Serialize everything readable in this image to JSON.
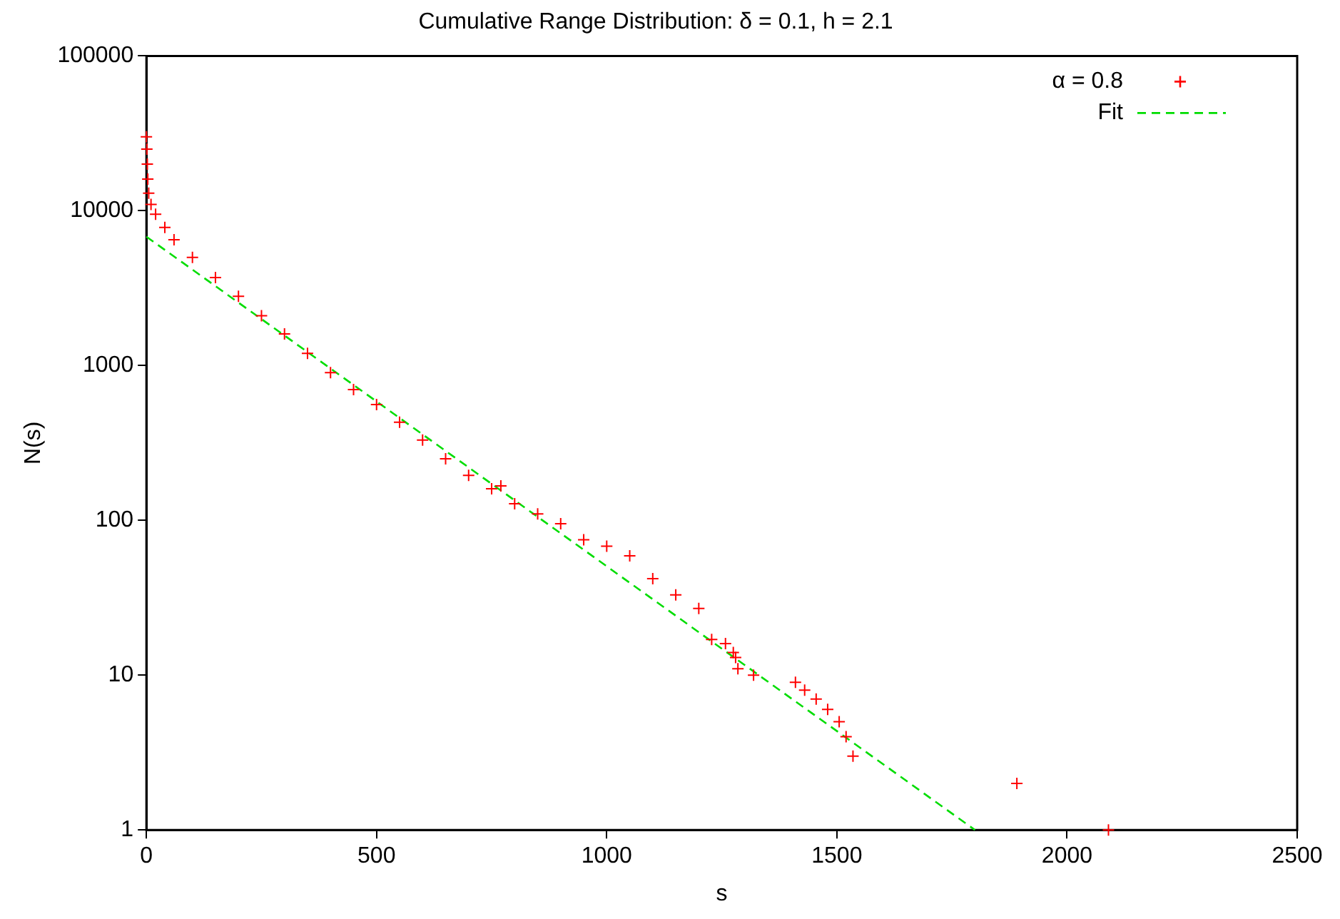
{
  "chart_data": {
    "type": "scatter",
    "title": "Cumulative Range Distribution: δ = 0.1, h = 2.1",
    "xlabel": "s",
    "ylabel": "N(s)",
    "log": "y",
    "xlim": [
      0,
      2500
    ],
    "xticks": [
      0,
      500,
      1000,
      1500,
      2000,
      2500
    ],
    "ylim": [
      1,
      100000
    ],
    "yticks": [
      1,
      10,
      100,
      1000,
      10000,
      100000
    ],
    "legend": "top right",
    "grid": false,
    "series": [
      {
        "name": "α = 0.8",
        "marker": "cross",
        "color": "#ff0000",
        "x": [
          0,
          1,
          2,
          3,
          5,
          10,
          20,
          40,
          60,
          100,
          150,
          200,
          250,
          300,
          350,
          400,
          450,
          500,
          550,
          600,
          650,
          700,
          750,
          770,
          800,
          850,
          900,
          950,
          1000,
          1050,
          1100,
          1150,
          1200,
          1228,
          1258,
          1275,
          1280,
          1285,
          1319,
          1410,
          1430,
          1455,
          1480,
          1505,
          1520,
          1535,
          1891,
          2090
        ],
        "values": [
          30000,
          25000,
          20000,
          16000,
          13000,
          11000,
          9500,
          7800,
          6500,
          5000,
          3700,
          2800,
          2100,
          1600,
          1200,
          900,
          700,
          560,
          430,
          330,
          250,
          195,
          160,
          167,
          128,
          110,
          95,
          75,
          68,
          59,
          42,
          33,
          27,
          17,
          16,
          14,
          13,
          11,
          10,
          9,
          8,
          7,
          6,
          5,
          4,
          3,
          2,
          1
        ]
      },
      {
        "name": "Fit",
        "type": "line",
        "marker": "none",
        "line_style": "dashed",
        "color": "#00dd00",
        "x": [
          0,
          1800
        ],
        "values": [
          6800,
          1
        ]
      }
    ]
  }
}
